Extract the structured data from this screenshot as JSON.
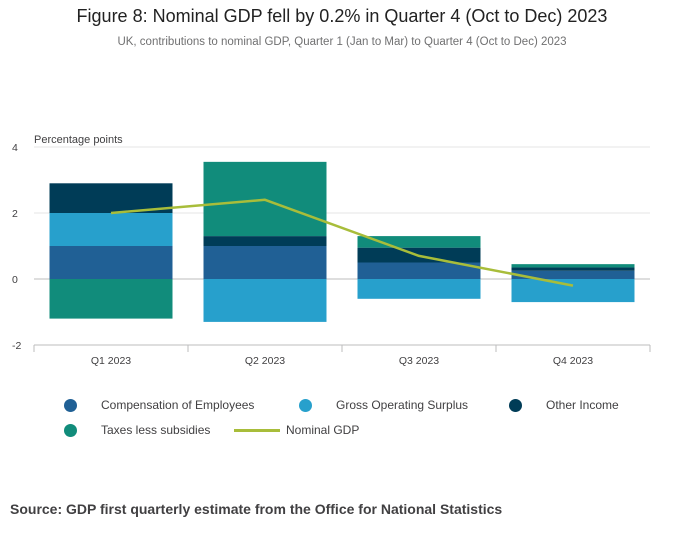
{
  "chart_data": {
    "type": "bar",
    "title": "Figure 8: Nominal GDP fell by 0.2% in Quarter 4 (Oct to Dec) 2023",
    "subtitle": "UK, contributions to nominal GDP, Quarter 1 (Jan to Mar) to Quarter 4 (Oct to Dec) 2023",
    "ylabel": "Percentage points",
    "xlabel": "",
    "categories": [
      "Q1 2023",
      "Q2 2023",
      "Q3 2023",
      "Q4 2023"
    ],
    "ylim": [
      -2,
      4
    ],
    "yticks": [
      "4",
      "2",
      "0",
      "-2"
    ],
    "grid": true,
    "legend_position": "bottom",
    "stacked": true,
    "series": [
      {
        "name": "Compensation of Employees",
        "type": "bar",
        "color": "#206095",
        "values": [
          1.0,
          1.0,
          0.5,
          0.25
        ]
      },
      {
        "name": "Gross Operating Surplus",
        "type": "bar",
        "color": "#27a0cc",
        "values": [
          1.0,
          -1.3,
          -0.6,
          -0.7
        ]
      },
      {
        "name": "Other Income",
        "type": "bar",
        "color": "#003c57",
        "values": [
          0.9,
          0.3,
          0.45,
          0.1
        ]
      },
      {
        "name": "Taxes less subsidies",
        "type": "bar",
        "color": "#118c7b",
        "values": [
          -1.2,
          2.25,
          0.35,
          0.1
        ]
      },
      {
        "name": "Nominal GDP",
        "type": "line",
        "color": "#a8bd3a",
        "values": [
          2.0,
          2.4,
          0.7,
          -0.2
        ]
      }
    ]
  },
  "source": "Source: GDP first quarterly estimate from the Office for National Statistics"
}
